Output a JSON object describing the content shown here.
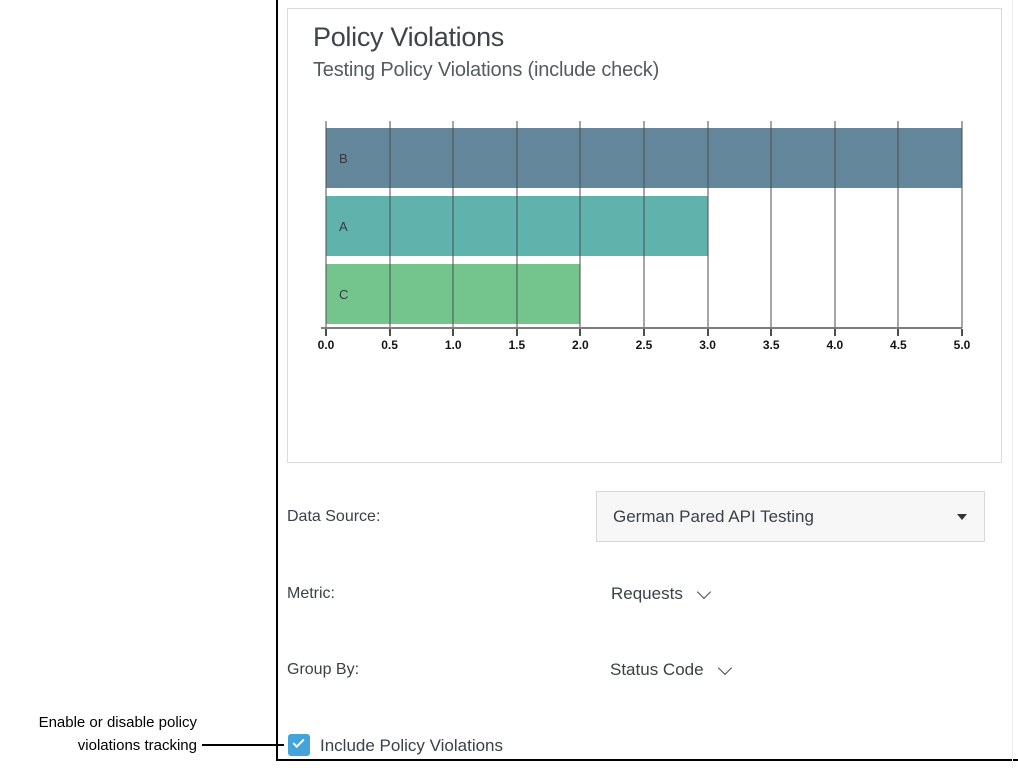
{
  "chart_data": {
    "type": "bar",
    "orientation": "horizontal",
    "title": "Policy Violations",
    "subtitle": "Testing Policy Violations (include check)",
    "categories": [
      "B",
      "A",
      "C"
    ],
    "values": [
      5,
      3,
      2
    ],
    "xlim": [
      0,
      5
    ],
    "x_ticks": [
      "0.0",
      "0.5",
      "1.0",
      "1.5",
      "2.0",
      "2.5",
      "3.0",
      "3.5",
      "4.0",
      "4.5",
      "5.0"
    ],
    "bar_colors": [
      "#64879b",
      "#5fb3ac",
      "#74c48e"
    ],
    "grid": true,
    "legend": "none"
  },
  "form": {
    "data_source": {
      "label": "Data Source:",
      "value": "German Pared API Testing"
    },
    "metric": {
      "label": "Metric:",
      "value": "Requests"
    },
    "group_by": {
      "label": "Group By:",
      "value": "Status Code"
    },
    "include_policy_violations": {
      "label": "Include Policy Violations",
      "checked": true
    }
  },
  "annotation": {
    "line1": "Enable or disable policy",
    "line2": "violations tracking"
  },
  "colors": {
    "checkbox_blue": "#44a3da",
    "bar_b": "#64879b",
    "bar_a": "#5fb3ac",
    "bar_c": "#74c48e",
    "gridline": "#4d4d4d",
    "axis": "#7d7d7d"
  }
}
